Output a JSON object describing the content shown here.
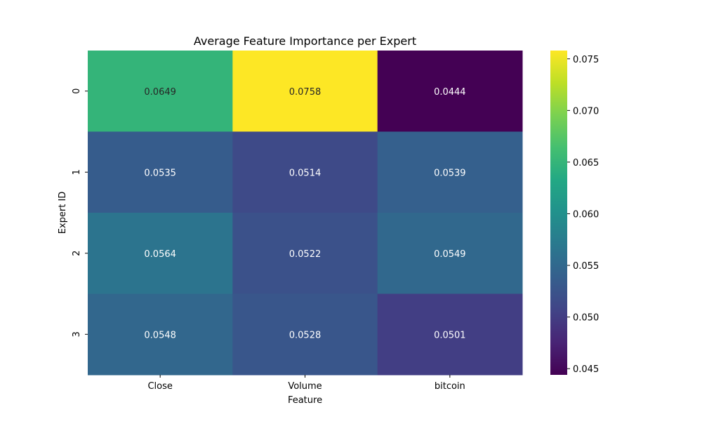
{
  "chart_data": {
    "type": "heatmap",
    "title": "Average Feature Importance per Expert",
    "xlabel": "Feature",
    "ylabel": "Expert ID",
    "x_categories": [
      "Close",
      "Volume",
      "bitcoin"
    ],
    "y_categories": [
      "0",
      "1",
      "2",
      "3"
    ],
    "values": [
      [
        0.0649,
        0.0758,
        0.0444
      ],
      [
        0.0535,
        0.0514,
        0.0539
      ],
      [
        0.0564,
        0.0522,
        0.0549
      ],
      [
        0.0548,
        0.0528,
        0.0501
      ]
    ],
    "value_labels": [
      [
        "0.0649",
        "0.0758",
        "0.0444"
      ],
      [
        "0.0535",
        "0.0514",
        "0.0539"
      ],
      [
        "0.0564",
        "0.0522",
        "0.0549"
      ],
      [
        "0.0548",
        "0.0528",
        "0.0501"
      ]
    ],
    "colormap": "viridis",
    "vmin": 0.0444,
    "vmax": 0.0758,
    "colorbar_ticks": [
      0.045,
      0.05,
      0.055,
      0.06,
      0.065,
      0.07,
      0.075
    ],
    "colorbar_tick_labels": [
      "0.045",
      "0.050",
      "0.055",
      "0.060",
      "0.065",
      "0.070",
      "0.075"
    ],
    "colorbar_position": "right",
    "grid": false
  }
}
